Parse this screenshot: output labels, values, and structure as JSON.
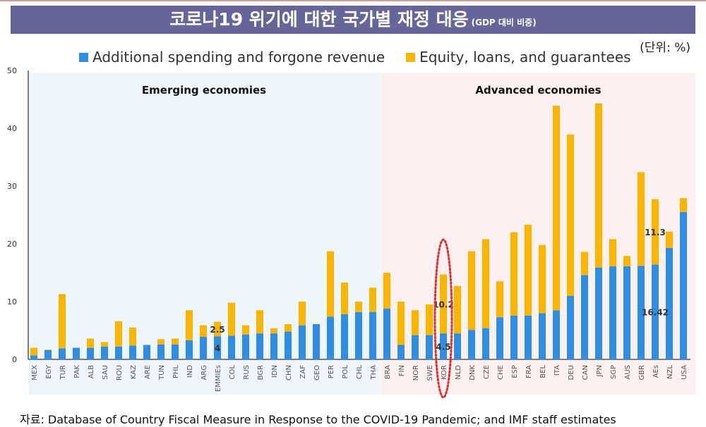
{
  "title": {
    "main": "코로나19 위기에 대한 국가별 재정 대응",
    "sub": "(GDP 대비 비중)"
  },
  "unit": "(단위: %)",
  "source": "자료: Database of Country Fiscal Measure in Response to the COVID-19 Pandemic; and IMF staff estimates",
  "colors": {
    "spending": "#2e8ee6",
    "equity": "#fbb500",
    "emerging_bg": "#eef5fb",
    "advanced_bg": "#fdf0f0",
    "highlight": "#e03030",
    "banner": "#66669a"
  },
  "chart_data": {
    "type": "bar",
    "stacked": true,
    "ylim": [
      0,
      50
    ],
    "yticks": [
      "0",
      "10",
      "20",
      "30",
      "40",
      "50"
    ],
    "grid": false,
    "legend": "top",
    "groups": [
      {
        "label": "Emerging economies",
        "categories": [
          "MEX",
          "EGY",
          "TUR",
          "PAK",
          "ALB",
          "SAU",
          "ROU",
          "KAZ",
          "ARE",
          "TUN",
          "PHL",
          "IND",
          "ARG",
          "EMMIEs",
          "COL",
          "RUS",
          "BGR",
          "IDN",
          "CHN",
          "ZAF",
          "GEO",
          "PER",
          "POL",
          "CHL",
          "THA",
          "BRA"
        ]
      },
      {
        "label": "Advanced economies",
        "categories": [
          "FIN",
          "NOR",
          "SWE",
          "KOR",
          "NLD",
          "DNK",
          "CZE",
          "CHE",
          "ESP",
          "FRA",
          "BEL",
          "ITA",
          "DEU",
          "CAN",
          "JPN",
          "SGP",
          "AUS",
          "GBR",
          "AEs",
          "NZL",
          "USA"
        ]
      }
    ],
    "categories": [
      "MEX",
      "EGY",
      "TUR",
      "PAK",
      "ALB",
      "SAU",
      "ROU",
      "KAZ",
      "ARE",
      "TUN",
      "PHL",
      "IND",
      "ARG",
      "EMMIEs",
      "COL",
      "RUS",
      "BGR",
      "IDN",
      "CHN",
      "ZAF",
      "GEO",
      "PER",
      "POL",
      "CHL",
      "THA",
      "BRA",
      "FIN",
      "NOR",
      "SWE",
      "KOR",
      "NLD",
      "DNK",
      "CZE",
      "CHE",
      "ESP",
      "FRA",
      "BEL",
      "ITA",
      "DEU",
      "CAN",
      "JPN",
      "SGP",
      "AUS",
      "GBR",
      "AEs",
      "NZL",
      "USA"
    ],
    "series": [
      {
        "name": "Additional spending and forgone revenue",
        "values": [
          0.7,
          1.6,
          1.9,
          2.0,
          2.0,
          2.2,
          2.2,
          2.4,
          2.5,
          2.6,
          2.6,
          3.3,
          3.9,
          4.0,
          4.1,
          4.3,
          4.5,
          4.5,
          4.8,
          5.9,
          6.1,
          7.4,
          7.8,
          8.2,
          8.2,
          8.8,
          2.5,
          4.2,
          4.2,
          4.5,
          4.5,
          5.1,
          5.4,
          7.3,
          7.6,
          7.6,
          8.0,
          8.5,
          11.0,
          14.6,
          15.9,
          16.1,
          16.1,
          16.2,
          16.42,
          19.3,
          25.5
        ]
      },
      {
        "name": "Equity, loans, and guarantees",
        "values": [
          1.3,
          0.1,
          9.4,
          0.0,
          1.6,
          0.8,
          4.4,
          3.1,
          0.0,
          0.9,
          1.0,
          5.2,
          2.0,
          2.5,
          5.7,
          1.6,
          4.0,
          0.9,
          1.3,
          4.1,
          0.0,
          11.3,
          5.5,
          1.8,
          4.2,
          6.2,
          7.5,
          4.3,
          5.3,
          10.2,
          8.2,
          13.6,
          15.4,
          6.2,
          14.4,
          15.7,
          11.8,
          35.4,
          27.9,
          4.0,
          28.4,
          4.7,
          1.8,
          16.2,
          11.3,
          2.8,
          2.4
        ]
      }
    ],
    "annotations": [
      {
        "category": "EMMIEs",
        "series": "Additional spending and forgone revenue",
        "text": "4"
      },
      {
        "category": "EMMIEs",
        "series": "Equity, loans, and guarantees",
        "text": "2.5"
      },
      {
        "category": "KOR",
        "series": "Additional spending and forgone revenue",
        "text": "4.5"
      },
      {
        "category": "KOR",
        "series": "Equity, loans, and guarantees",
        "text": "10.2"
      },
      {
        "category": "AEs",
        "series": "Additional spending and forgone revenue",
        "text": "16.42"
      },
      {
        "category": "AEs",
        "series": "Equity, loans, and guarantees",
        "text": "11.3"
      }
    ],
    "highlight": "KOR"
  }
}
